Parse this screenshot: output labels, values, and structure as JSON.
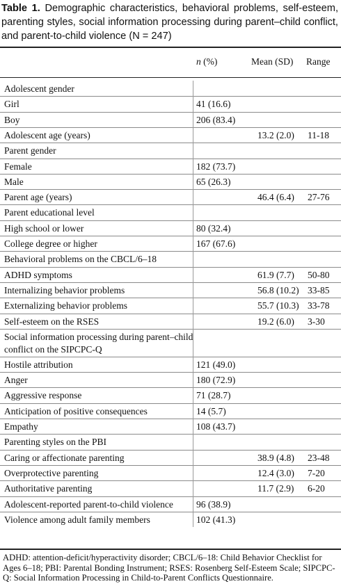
{
  "caption": {
    "number": "Table 1.",
    "text": "Demographic characteristics, behavioral problems, self-esteem, parenting styles, social information processing during parent–child conflict, and parent-to-child violence (N = 247)"
  },
  "headers": {
    "n_italic": "n",
    "n_rest": "(%)",
    "mean": "Mean (SD)",
    "range": "Range"
  },
  "rows": [
    {
      "label": "Adolescent gender",
      "n": "",
      "mean": "",
      "range": ""
    },
    {
      "label": "Girl",
      "n": "41 (16.6)",
      "mean": "",
      "range": ""
    },
    {
      "label": "Boy",
      "n": "206 (83.4)",
      "mean": "",
      "range": ""
    },
    {
      "label": "Adolescent age (years)",
      "n": "",
      "mean": "13.2 (2.0)",
      "range": "11-18"
    },
    {
      "label": "Parent gender",
      "n": "",
      "mean": "",
      "range": ""
    },
    {
      "label": "Female",
      "n": "182 (73.7)",
      "mean": "",
      "range": ""
    },
    {
      "label": "Male",
      "n": "65 (26.3)",
      "mean": "",
      "range": ""
    },
    {
      "label": "Parent age (years)",
      "n": "",
      "mean": "46.4 (6.4)",
      "range": "27-76"
    },
    {
      "label": "Parent educational level",
      "n": "",
      "mean": "",
      "range": ""
    },
    {
      "label": "High school or lower",
      "n": "80 (32.4)",
      "mean": "",
      "range": ""
    },
    {
      "label": "College degree or higher",
      "n": "167 (67.6)",
      "mean": "",
      "range": ""
    },
    {
      "label": "Behavioral problems on the CBCL/6–18",
      "n": "",
      "mean": "",
      "range": ""
    },
    {
      "label": "ADHD symptoms",
      "n": "",
      "mean": "61.9 (7.7)",
      "range": "50-80"
    },
    {
      "label": "Internalizing behavior problems",
      "n": "",
      "mean": "56.8 (10.2)",
      "range": "33-85"
    },
    {
      "label": "Externalizing behavior problems",
      "n": "",
      "mean": "55.7 (10.3)",
      "range": "33-78"
    },
    {
      "label": "Self-esteem on the RSES",
      "n": "",
      "mean": "19.2 (6.0)",
      "range": "3-30"
    },
    {
      "label": "Social information processing during parent–child conflict on the SIPCPC-Q",
      "n": "",
      "mean": "",
      "range": ""
    },
    {
      "label": "Hostile attribution",
      "n": "121 (49.0)",
      "mean": "",
      "range": ""
    },
    {
      "label": "Anger",
      "n": "180 (72.9)",
      "mean": "",
      "range": ""
    },
    {
      "label": "Aggressive response",
      "n": "71 (28.7)",
      "mean": "",
      "range": ""
    },
    {
      "label": "Anticipation of positive consequences",
      "n": "14 (5.7)",
      "mean": "",
      "range": ""
    },
    {
      "label": "Empathy",
      "n": "108 (43.7)",
      "mean": "",
      "range": ""
    },
    {
      "label": "Parenting styles on the PBI",
      "n": "",
      "mean": "",
      "range": ""
    },
    {
      "label": "Caring or affectionate parenting",
      "n": "",
      "mean": "38.9 (4.8)",
      "range": "23-48"
    },
    {
      "label": "Overprotective parenting",
      "n": "",
      "mean": "12.4 (3.0)",
      "range": "7-20"
    },
    {
      "label": "Authoritative parenting",
      "n": "",
      "mean": "11.7 (2.9)",
      "range": "6-20"
    },
    {
      "label": "Adolescent-reported parent-to-child violence",
      "n": "96 (38.9)",
      "mean": "",
      "range": ""
    },
    {
      "label": "Violence among adult family members",
      "n": "102 (41.3)",
      "mean": "",
      "range": ""
    }
  ],
  "footnote": "ADHD: attention-deficit/hyperactivity disorder; CBCL/6–18: Child Behavior Checklist for Ages 6–18; PBI: Parental Bonding Instrument; RSES: Rosenberg Self-Esteem Scale; SIPCPC-Q: Social Information Processing in Child-to-Parent Conflicts Questionnaire."
}
